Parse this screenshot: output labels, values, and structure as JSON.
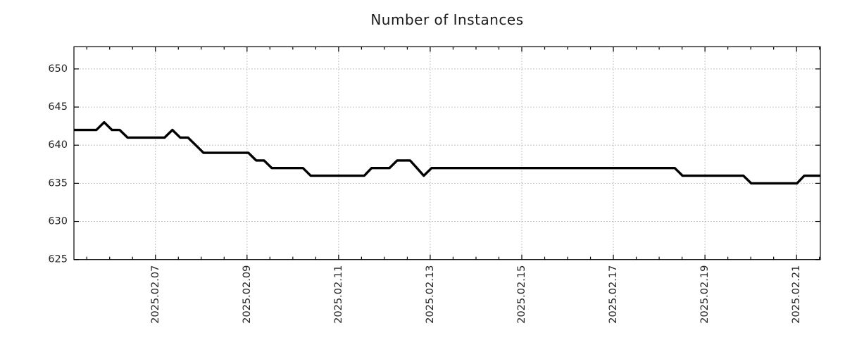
{
  "title": "Number of Instances",
  "colors": {
    "background": "#ffffff",
    "line": "#000000",
    "grid": "#b3b3b3",
    "axis": "#000000",
    "text": "#262626"
  },
  "chart_data": {
    "type": "line",
    "title": "Number of Instances",
    "xlabel": "",
    "ylabel": "",
    "legend": "none",
    "grid": "dotted gridlines at labeled ticks",
    "ylim": [
      625,
      652.9
    ],
    "y_ticks": [
      625,
      630,
      635,
      640,
      645,
      650
    ],
    "y_tick_labels": [
      "625",
      "630",
      "635",
      "640",
      "645",
      "650"
    ],
    "xlim_days": [
      0,
      16.3
    ],
    "x_tick_labels": [
      "2025.02.07",
      "2025.02.09",
      "2025.02.11",
      "2025.02.13",
      "2025.02.15",
      "2025.02.17",
      "2025.02.19",
      "2025.02.21"
    ],
    "x_tick_day_offsets": [
      1.78,
      3.78,
      5.78,
      7.78,
      9.78,
      11.78,
      13.78,
      15.78
    ],
    "x_minor_tick_start_day": 0.28,
    "x_minor_tick_interval_days": 0.5,
    "x_tick_label_rotation_deg": 90,
    "series": [
      {
        "name": "Number of Instances",
        "color": "#000000",
        "line_width": 3.4,
        "points_day_value": [
          [
            0.0,
            642
          ],
          [
            0.49,
            642
          ],
          [
            0.66,
            643
          ],
          [
            0.83,
            642
          ],
          [
            1.0,
            642
          ],
          [
            1.17,
            641
          ],
          [
            1.98,
            641
          ],
          [
            2.15,
            642
          ],
          [
            2.32,
            641
          ],
          [
            2.49,
            641
          ],
          [
            2.66,
            640
          ],
          [
            2.83,
            639
          ],
          [
            3.81,
            639
          ],
          [
            3.98,
            638
          ],
          [
            4.15,
            638
          ],
          [
            4.32,
            637
          ],
          [
            5.0,
            637
          ],
          [
            5.17,
            636
          ],
          [
            6.34,
            636
          ],
          [
            6.5,
            637
          ],
          [
            6.89,
            637
          ],
          [
            7.06,
            638
          ],
          [
            7.34,
            638
          ],
          [
            7.49,
            637
          ],
          [
            7.64,
            636
          ],
          [
            7.81,
            637
          ],
          [
            13.12,
            637
          ],
          [
            13.29,
            636
          ],
          [
            14.62,
            636
          ],
          [
            14.79,
            635
          ],
          [
            15.79,
            635
          ],
          [
            15.95,
            636
          ],
          [
            16.3,
            636
          ]
        ]
      }
    ]
  }
}
